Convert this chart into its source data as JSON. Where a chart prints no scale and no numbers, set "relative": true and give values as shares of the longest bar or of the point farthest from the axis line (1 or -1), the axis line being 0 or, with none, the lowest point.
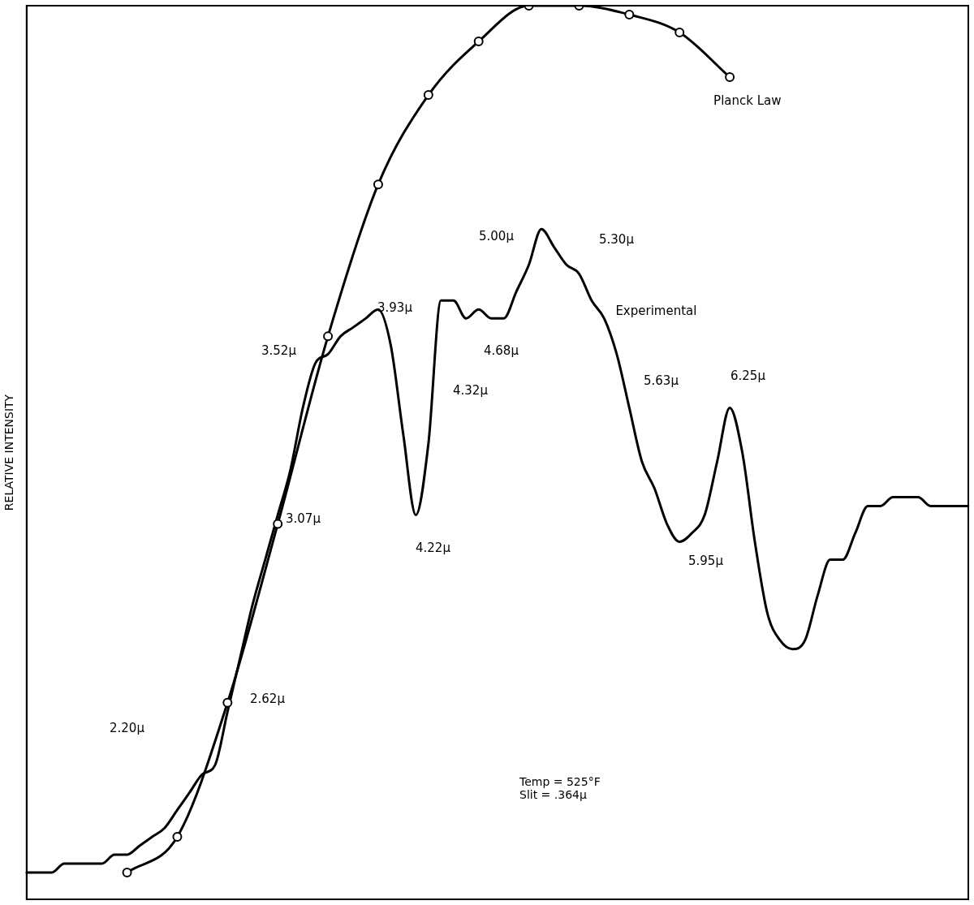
{
  "chart_data": {
    "type": "line",
    "relative": true,
    "ylabel": "RELATIVE INTENSITY",
    "legend": false,
    "grid": false,
    "line_style": "solid",
    "tick_labels": false,
    "categories": [
      null,
      null,
      null,
      null,
      null,
      null,
      null,
      null,
      null,
      null,
      null,
      null,
      null,
      null,
      null,
      null,
      null,
      null,
      null,
      null,
      null,
      null,
      null,
      null,
      null,
      null,
      null,
      null,
      null,
      null,
      null,
      null,
      null,
      null,
      null,
      null,
      null,
      null,
      null,
      null,
      null,
      null,
      null,
      null,
      null,
      null,
      null,
      null,
      null,
      null,
      null,
      null,
      null,
      null,
      null,
      null,
      null,
      null,
      null,
      null,
      null,
      null,
      null,
      null,
      null,
      null,
      null,
      null,
      null,
      null,
      null,
      null,
      null,
      null,
      null,
      null
    ],
    "series": [
      {
        "name": "Planck Law",
        "color": "#000000",
        "marker": "circle",
        "values": [
          null,
          null,
          null,
          null,
          null,
          null,
          null,
          null,
          0.03,
          null,
          null,
          null,
          0.07,
          null,
          null,
          null,
          0.22,
          null,
          null,
          null,
          0.42,
          null,
          null,
          null,
          0.63,
          null,
          null,
          null,
          0.8,
          null,
          null,
          null,
          0.9,
          null,
          null,
          null,
          0.96,
          null,
          null,
          null,
          1,
          null,
          null,
          null,
          1,
          null,
          null,
          null,
          0.99,
          null,
          null,
          null,
          0.97,
          null,
          null,
          null,
          0.92,
          null,
          null,
          null,
          null,
          null,
          null,
          null,
          null,
          null,
          null,
          null,
          null,
          null,
          null,
          null,
          null,
          null,
          null,
          null
        ]
      },
      {
        "name": "Experimental",
        "color": "#000000",
        "marker": "none",
        "values": [
          0.03,
          0.03,
          0.03,
          0.04,
          0.04,
          0.04,
          0.04,
          0.05,
          0.05,
          0.06,
          0.07,
          0.08,
          0.1,
          0.12,
          0.14,
          0.15,
          0.21,
          0.27,
          0.33,
          0.38,
          0.43,
          0.48,
          0.55,
          0.6,
          0.61,
          0.63,
          0.64,
          0.65,
          0.66,
          0.62,
          0.52,
          0.43,
          0.51,
          0.67,
          0.67,
          0.65,
          0.66,
          0.65,
          0.65,
          0.68,
          0.71,
          0.75,
          0.73,
          0.71,
          0.7,
          0.67,
          0.65,
          0.61,
          0.55,
          0.49,
          0.46,
          0.42,
          0.4,
          0.41,
          0.43,
          0.49,
          0.55,
          0.5,
          0.4,
          0.32,
          0.29,
          0.28,
          0.29,
          0.34,
          0.38,
          0.38,
          0.41,
          0.44,
          0.44,
          0.45,
          0.45,
          0.45,
          0.44,
          0.44,
          0.44,
          0.44
        ]
      }
    ],
    "annotations": [
      "2.20μ",
      "2.62μ",
      "3.07μ",
      "3.52μ",
      "3.93μ",
      "4.22μ",
      "4.32μ",
      "4.68μ",
      "5.00μ",
      "5.30μ",
      "5.63μ",
      "5.95μ",
      "6.25μ",
      "Temp = 525°F",
      "Slit = .364μ"
    ]
  }
}
